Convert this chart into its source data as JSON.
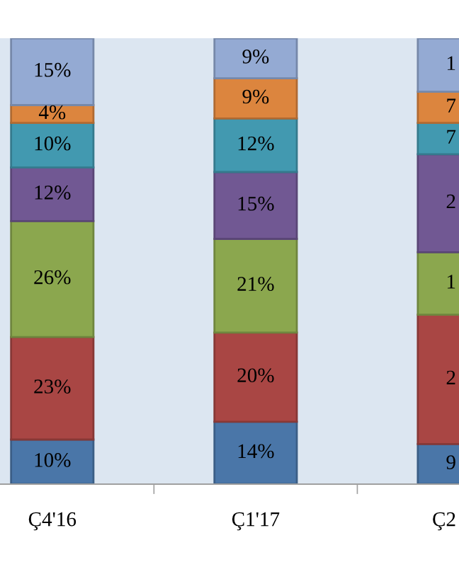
{
  "chart_data": {
    "type": "bar",
    "stacked": true,
    "categories": [
      "Ç4'16",
      "Ç1'17",
      "Ç2"
    ],
    "ylim": [
      0,
      100
    ],
    "series": [
      {
        "color": "#4a76a8",
        "values": [
          10,
          14,
          9
        ],
        "value_labels": [
          "10%",
          "14%",
          "9"
        ]
      },
      {
        "color": "#a94644",
        "values": [
          23,
          20,
          29
        ],
        "value_labels": [
          "23%",
          "20%",
          null
        ]
      },
      {
        "color": "#8ba74e",
        "values": [
          26,
          21,
          14
        ],
        "value_labels": [
          "26%",
          "21%",
          null
        ]
      },
      {
        "color": "#715893",
        "values": [
          12,
          15,
          22
        ],
        "value_labels": [
          "12%",
          "15%",
          null
        ]
      },
      {
        "color": "#4299b0",
        "values": [
          10,
          12,
          7
        ],
        "value_labels": [
          "10%",
          "12%",
          "7"
        ]
      },
      {
        "color": "#dc853e",
        "values": [
          4,
          9,
          7
        ],
        "value_labels": [
          "4%",
          "9%",
          "7"
        ]
      },
      {
        "color": "#94aad3",
        "values": [
          15,
          9,
          12
        ],
        "value_labels": [
          "15%",
          "9%",
          null
        ]
      }
    ],
    "annotations": [
      "2",
      "1",
      "2",
      "1"
    ],
    "grid": false,
    "legend": false
  }
}
